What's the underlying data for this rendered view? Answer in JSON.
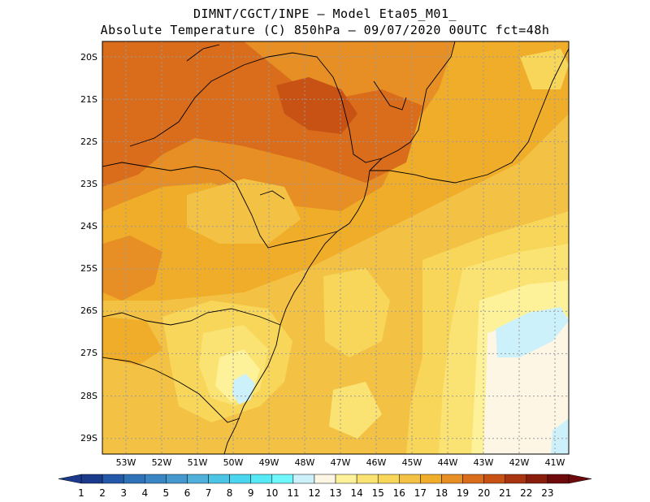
{
  "title": {
    "line1": "DIMNT/CGCT/INPE –  Model Eta05_M01_",
    "line2": "Absolute Temperature (C) 850hPa –  09/07/2020 00UTC fct=48h"
  },
  "map": {
    "lat_labels": [
      "20S",
      "21S",
      "22S",
      "23S",
      "24S",
      "25S",
      "26S",
      "27S",
      "28S",
      "29S"
    ],
    "lon_labels": [
      "53W",
      "52W",
      "51W",
      "50W",
      "49W",
      "48W",
      "47W",
      "46W",
      "45W",
      "44W",
      "43W",
      "42W",
      "41W"
    ]
  },
  "colorbar": {
    "labels": [
      "1",
      "2",
      "3",
      "4",
      "5",
      "6",
      "7",
      "8",
      "9",
      "10",
      "11",
      "12",
      "13",
      "14",
      "15",
      "16",
      "17",
      "18",
      "19",
      "20",
      "21",
      "22",
      "23"
    ],
    "colors": [
      "#1b3a8c",
      "#2458a8",
      "#2f72b8",
      "#3a86c4",
      "#4699cf",
      "#4fb0d9",
      "#4cc4e6",
      "#4ad6ef",
      "#56eaf7",
      "#6ff7fb",
      "#ccf1fb",
      "#fdf6e4",
      "#fdf29a",
      "#fbe373",
      "#f7d659",
      "#f3c244",
      "#efad2a",
      "#e78f24",
      "#d96d1c",
      "#c85114",
      "#a8350f",
      "#8a1c0b",
      "#6e0a0c"
    ]
  }
}
